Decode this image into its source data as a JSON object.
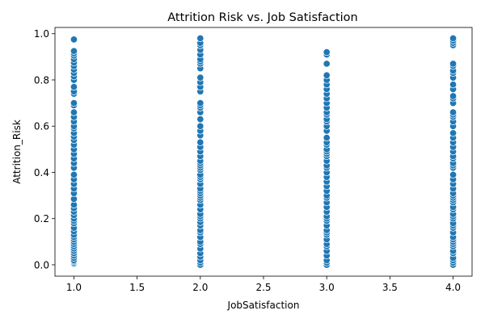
{
  "chart_data": {
    "type": "scatter",
    "title": "Attrition Risk vs. Job Satisfaction",
    "xlabel": "JobSatisfaction",
    "ylabel": "Attrition_Risk",
    "xlim": [
      0.85,
      4.15
    ],
    "ylim": [
      -0.049,
      1.027
    ],
    "xticks": [
      "1.0",
      "1.5",
      "2.0",
      "2.5",
      "3.0",
      "3.5",
      "4.0"
    ],
    "yticks": [
      "0.0",
      "0.2",
      "0.4",
      "0.6",
      "0.8",
      "1.0"
    ],
    "grid": false,
    "marker_color": "#1f77b4",
    "marker_edge_color": "#ffffff",
    "series": [
      {
        "x": 1.0,
        "y": [
          0.005,
          0.01,
          0.015,
          0.02,
          0.03,
          0.04,
          0.05,
          0.06,
          0.07,
          0.08,
          0.09,
          0.1,
          0.11,
          0.12,
          0.13,
          0.145,
          0.16,
          0.18,
          0.19,
          0.2,
          0.215,
          0.23,
          0.245,
          0.26,
          0.285,
          0.31,
          0.33,
          0.35,
          0.37,
          0.39,
          0.42,
          0.44,
          0.46,
          0.48,
          0.5,
          0.52,
          0.54,
          0.555,
          0.57,
          0.59,
          0.6,
          0.62,
          0.64,
          0.66,
          0.69,
          0.7,
          0.74,
          0.75,
          0.77,
          0.8,
          0.815,
          0.83,
          0.845,
          0.86,
          0.875,
          0.89,
          0.905,
          0.915,
          0.925,
          0.975
        ]
      },
      {
        "x": 2.0,
        "y": [
          0.0,
          0.01,
          0.02,
          0.035,
          0.05,
          0.07,
          0.09,
          0.1,
          0.12,
          0.14,
          0.15,
          0.17,
          0.185,
          0.2,
          0.21,
          0.22,
          0.24,
          0.26,
          0.28,
          0.29,
          0.3,
          0.31,
          0.32,
          0.33,
          0.35,
          0.37,
          0.38,
          0.39,
          0.41,
          0.42,
          0.43,
          0.44,
          0.45,
          0.47,
          0.49,
          0.51,
          0.53,
          0.56,
          0.58,
          0.6,
          0.63,
          0.66,
          0.68,
          0.69,
          0.7,
          0.75,
          0.77,
          0.79,
          0.81,
          0.85,
          0.87,
          0.88,
          0.89,
          0.91,
          0.93,
          0.95,
          0.96,
          0.98
        ]
      },
      {
        "x": 3.0,
        "y": [
          0.0,
          0.01,
          0.02,
          0.04,
          0.06,
          0.08,
          0.09,
          0.11,
          0.13,
          0.14,
          0.15,
          0.17,
          0.19,
          0.2,
          0.21,
          0.23,
          0.25,
          0.27,
          0.29,
          0.3,
          0.32,
          0.34,
          0.36,
          0.38,
          0.4,
          0.42,
          0.43,
          0.45,
          0.47,
          0.48,
          0.49,
          0.5,
          0.52,
          0.53,
          0.55,
          0.58,
          0.6,
          0.62,
          0.63,
          0.65,
          0.66,
          0.68,
          0.7,
          0.72,
          0.74,
          0.76,
          0.78,
          0.8,
          0.82,
          0.87,
          0.91,
          0.92
        ]
      },
      {
        "x": 4.0,
        "y": [
          0.0,
          0.01,
          0.02,
          0.03,
          0.05,
          0.06,
          0.08,
          0.09,
          0.1,
          0.11,
          0.12,
          0.14,
          0.16,
          0.17,
          0.18,
          0.2,
          0.21,
          0.22,
          0.24,
          0.25,
          0.27,
          0.28,
          0.29,
          0.3,
          0.31,
          0.33,
          0.35,
          0.37,
          0.39,
          0.42,
          0.43,
          0.44,
          0.46,
          0.47,
          0.49,
          0.51,
          0.53,
          0.55,
          0.57,
          0.6,
          0.62,
          0.64,
          0.65,
          0.66,
          0.7,
          0.72,
          0.73,
          0.76,
          0.78,
          0.81,
          0.83,
          0.84,
          0.86,
          0.87,
          0.95,
          0.96,
          0.97,
          0.98
        ]
      }
    ]
  }
}
